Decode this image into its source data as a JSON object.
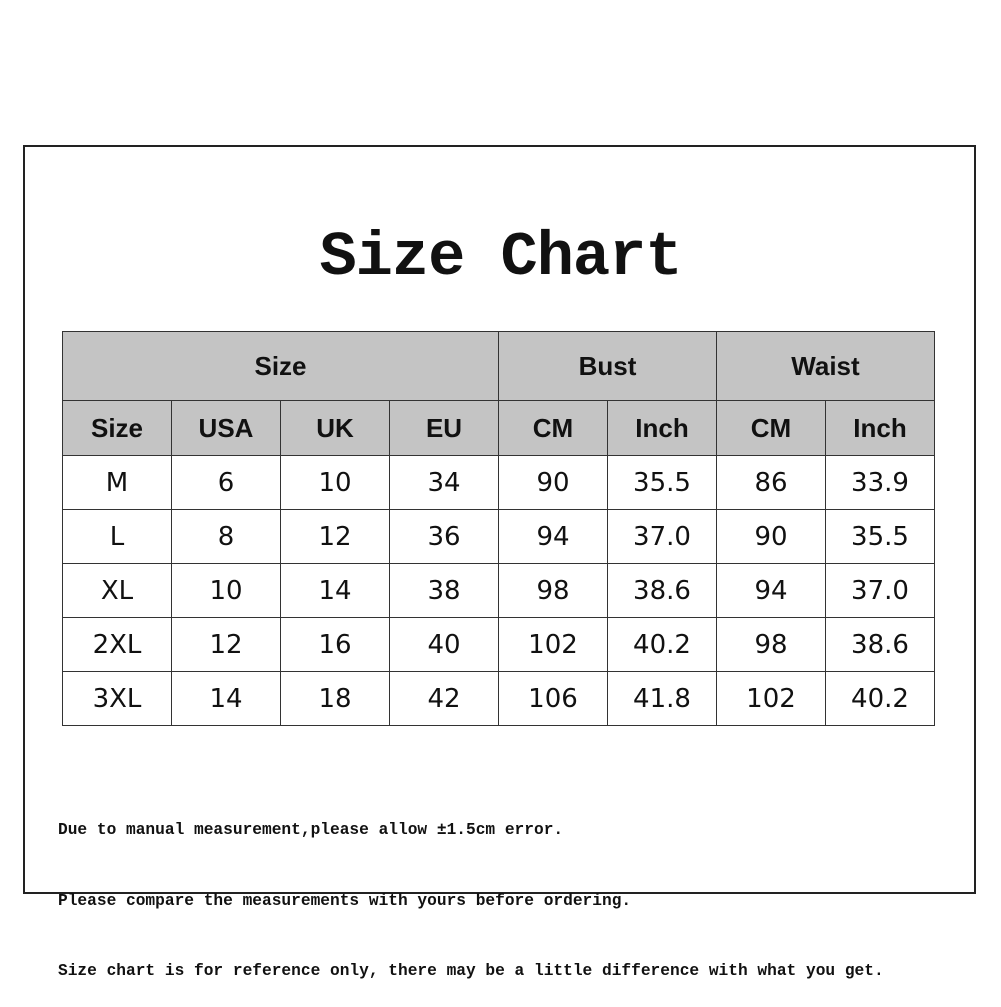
{
  "title": "Size Chart",
  "table": {
    "groups": [
      {
        "label": "Size",
        "span": 4
      },
      {
        "label": "Bust",
        "span": 2
      },
      {
        "label": "Waist",
        "span": 2
      }
    ],
    "columns": [
      "Size",
      "USA",
      "UK",
      "EU",
      "CM",
      "Inch",
      "CM",
      "Inch"
    ],
    "rows": [
      [
        "M",
        "6",
        "10",
        "34",
        "90",
        "35.5",
        "86",
        "33.9"
      ],
      [
        "L",
        "8",
        "12",
        "36",
        "94",
        "37.0",
        "90",
        "35.5"
      ],
      [
        "XL",
        "10",
        "14",
        "38",
        "98",
        "38.6",
        "94",
        "37.0"
      ],
      [
        "2XL",
        "12",
        "16",
        "40",
        "102",
        "40.2",
        "98",
        "38.6"
      ],
      [
        "3XL",
        "14",
        "18",
        "42",
        "106",
        "41.8",
        "102",
        "40.2"
      ]
    ],
    "header_color": "#c4c4c4"
  },
  "notes": [
    "Due to manual measurement,please allow ±1.5cm error.",
    "Please compare the measurements with yours before ordering.",
    "Size chart is for reference only, there may be a little difference with what you get."
  ]
}
